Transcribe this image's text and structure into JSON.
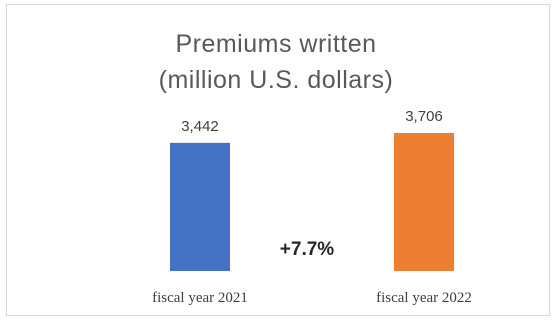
{
  "chart_data": {
    "type": "bar",
    "title": "Premiums written (million U.S. dollars)",
    "title_lines": [
      "Premiums written",
      "(million U.S. dollars)"
    ],
    "categories": [
      "fiscal year 2021",
      "fiscal year 2022"
    ],
    "values": [
      3442,
      3706
    ],
    "value_labels": [
      "3,442",
      "3,706"
    ],
    "bar_colors": [
      "#4472C4",
      "#ED7D31"
    ],
    "annotation": "+7.7%",
    "xlabel": "",
    "ylabel": "",
    "ylim": [
      0,
      3706
    ],
    "grid": false,
    "legend": "none"
  }
}
